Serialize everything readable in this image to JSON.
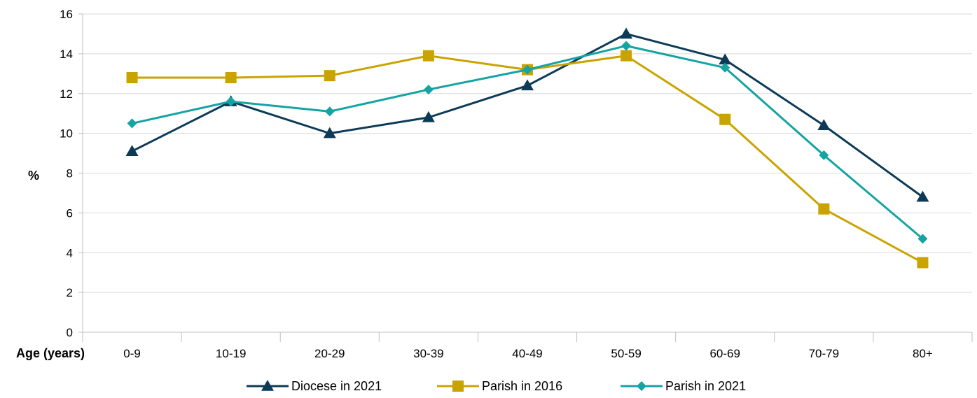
{
  "chart_data": {
    "type": "line",
    "title": "",
    "xlabel": "Age (years)",
    "ylabel": "%",
    "ylim": [
      0,
      16
    ],
    "yticks": [
      0,
      2,
      4,
      6,
      8,
      10,
      12,
      14,
      16
    ],
    "categories": [
      "0-9",
      "10-19",
      "20-29",
      "30-39",
      "40-49",
      "50-59",
      "60-69",
      "70-79",
      "80+"
    ],
    "grid": true,
    "legend_position": "bottom",
    "series": [
      {
        "name": "Diocese in 2021",
        "color": "#0d3b57",
        "marker": "triangle",
        "values": [
          9.1,
          11.6,
          10.0,
          10.8,
          12.4,
          15.0,
          13.7,
          10.4,
          6.8
        ]
      },
      {
        "name": "Parish in 2016",
        "color": "#c9a400",
        "marker": "square",
        "values": [
          12.8,
          12.8,
          12.9,
          13.9,
          13.2,
          13.9,
          10.7,
          6.2,
          3.5
        ]
      },
      {
        "name": "Parish in 2021",
        "color": "#15a3a3",
        "marker": "diamond",
        "values": [
          10.5,
          11.6,
          11.1,
          12.2,
          13.2,
          14.4,
          13.3,
          8.9,
          4.7
        ]
      }
    ]
  }
}
